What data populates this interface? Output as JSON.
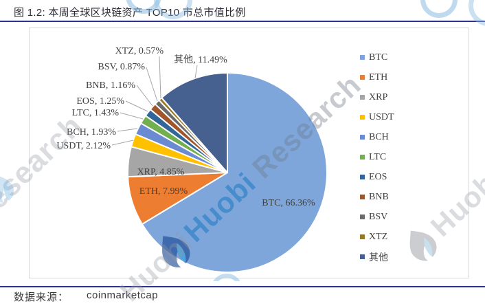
{
  "page": {
    "title": "图 1.2:  本周全球区块链资产 TOP10 市总市值比例",
    "footer": {
      "label": "数据来源：",
      "value": "coinmarketcap"
    },
    "accent_color": "#2F3190",
    "watermark": {
      "brand": "Huobi",
      "brand2": "Research"
    }
  },
  "chart_data": {
    "type": "pie",
    "title": "本周全球区块链资产 TOP10 市总市值比例",
    "unit": "%",
    "start_angle_deg": 0,
    "direction": "clockwise",
    "legend_position": "right",
    "data_label_format": "{label}, {value}%",
    "slices": [
      {
        "label": "BTC",
        "value": 66.36,
        "color": "#7EA6DB"
      },
      {
        "label": "ETH",
        "value": 7.99,
        "color": "#ED7D31"
      },
      {
        "label": "XRP",
        "value": 4.85,
        "color": "#A6A6A6"
      },
      {
        "label": "USDT",
        "value": 2.12,
        "color": "#FFC000"
      },
      {
        "label": "BCH",
        "value": 1.93,
        "color": "#6A8BD2"
      },
      {
        "label": "LTC",
        "value": 1.43,
        "color": "#72AF4E"
      },
      {
        "label": "EOS",
        "value": 1.25,
        "color": "#326699"
      },
      {
        "label": "BNB",
        "value": 1.16,
        "color": "#A1552A"
      },
      {
        "label": "BSV",
        "value": 0.87,
        "color": "#6B6B6B"
      },
      {
        "label": "XTZ",
        "value": 0.57,
        "color": "#99791A"
      },
      {
        "label": "其他",
        "value": 11.49,
        "color": "#46608F"
      }
    ],
    "legend": [
      "BTC",
      "ETH",
      "XRP",
      "USDT",
      "BCH",
      "LTC",
      "EOS",
      "BNB",
      "BSV",
      "XTZ",
      "其他"
    ]
  }
}
